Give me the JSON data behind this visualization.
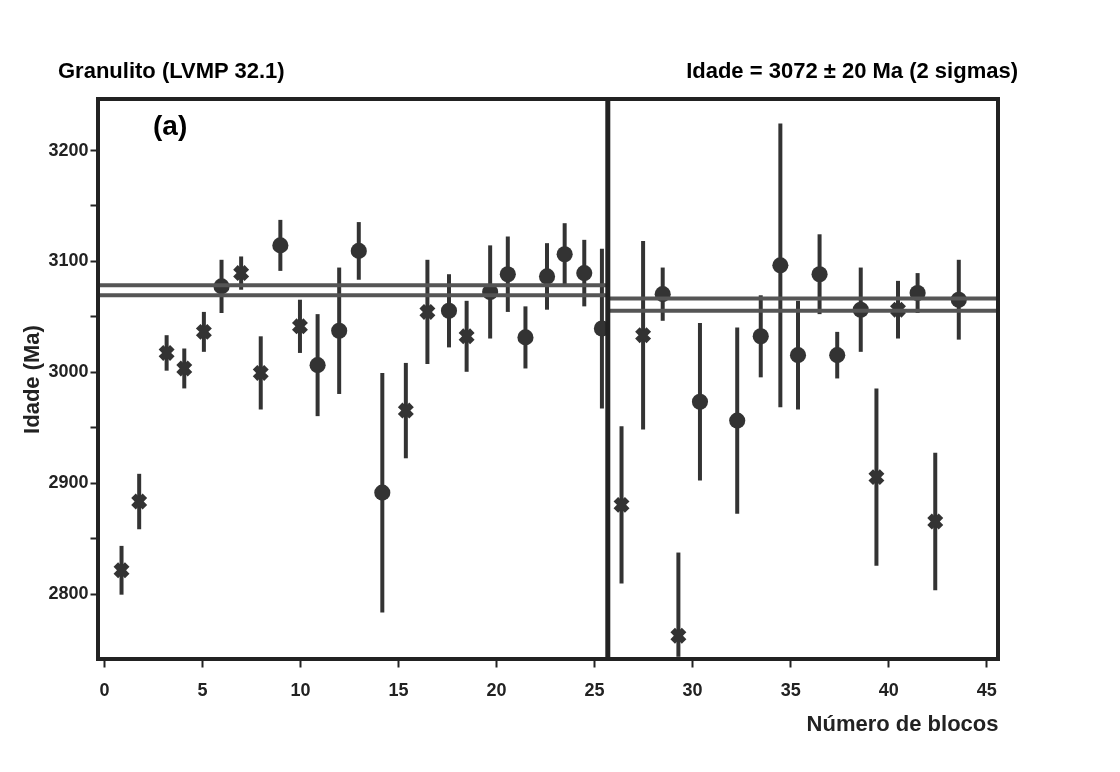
{
  "chart_data": {
    "type": "scatter",
    "title": "Granulito (LVMP 32.1)",
    "subtitle": "Idade = 3072 ± 20 Ma (2 sigmas)",
    "xlabel": "Número de blocos",
    "ylabel": "Idade (Ma)",
    "annotations": [
      "(a)"
    ],
    "xlim": [
      -0.3,
      45.6
    ],
    "ylim": [
      2741,
      3246
    ],
    "xticks": [
      0,
      5,
      10,
      15,
      20,
      25,
      30,
      35,
      40,
      45
    ],
    "yticks": [
      2800,
      {
        "value": 2850,
        "label": null
      },
      2900,
      {
        "value": 2950,
        "label": null
      },
      3000,
      {
        "value": 3050,
        "label": null
      },
      3100,
      {
        "value": 3150,
        "label": null
      },
      3200
    ],
    "grid": false,
    "ref_lines": [
      {
        "axis": "x",
        "value": 25.7,
        "color": "#222222"
      }
    ],
    "series": [
      {
        "marker": "circle",
        "color": "#333333",
        "x": [
          6.0,
          9.0,
          10.9,
          12.0,
          13.0,
          14.2,
          17.6,
          19.7,
          20.6,
          21.5,
          22.6,
          23.5,
          24.5,
          25.4,
          28.5,
          30.4,
          32.3,
          33.5,
          34.5,
          35.4,
          36.5,
          37.4,
          38.6,
          41.5,
          43.6
        ],
        "values": [
          3077,
          3114,
          3006,
          3037,
          3109,
          2891,
          3055,
          3072,
          3088,
          3031,
          3086,
          3106,
          3089,
          3039,
          3070,
          2973,
          2956,
          3032,
          3096,
          3015,
          3088,
          3015,
          3056,
          3071,
          3065
        ],
        "errors": [
          24,
          23,
          46,
          57,
          26,
          108,
          33,
          42,
          34,
          28,
          30,
          28,
          30,
          72,
          24,
          71,
          84,
          37,
          128,
          49,
          36,
          21,
          38,
          18,
          36
        ]
      },
      {
        "marker": "cross",
        "color": "#333333",
        "x": [
          0.9,
          1.8,
          3.2,
          4.1,
          5.1,
          7.0,
          8.0,
          10.0,
          15.4,
          16.5,
          18.5,
          26.4,
          27.5,
          29.3,
          39.4,
          40.5,
          42.4
        ],
        "values": [
          2821,
          2883,
          3017,
          3003,
          3036,
          3089,
          2999,
          3041,
          2965,
          3054,
          3032,
          2880,
          3033,
          2762,
          2905,
          3056,
          2865
        ],
        "errors": [
          22,
          25,
          16,
          18,
          18,
          15,
          33,
          24,
          43,
          47,
          32,
          71,
          85,
          [
            2743,
            2837
          ],
          80,
          26,
          62
        ]
      },
      {
        "type": "line",
        "color": "#555555",
        "x": [
          -0.3,
          25.7
        ],
        "values": [
          3078,
          3078
        ]
      },
      {
        "type": "line",
        "color": "#555555",
        "x": [
          -0.3,
          25.7
        ],
        "values": [
          3069,
          3069
        ]
      },
      {
        "type": "line",
        "color": "#555555",
        "x": [
          25.7,
          45.6
        ],
        "values": [
          3066,
          3066
        ]
      },
      {
        "type": "line",
        "color": "#555555",
        "x": [
          25.7,
          45.6
        ],
        "values": [
          3055,
          3055
        ]
      }
    ]
  }
}
